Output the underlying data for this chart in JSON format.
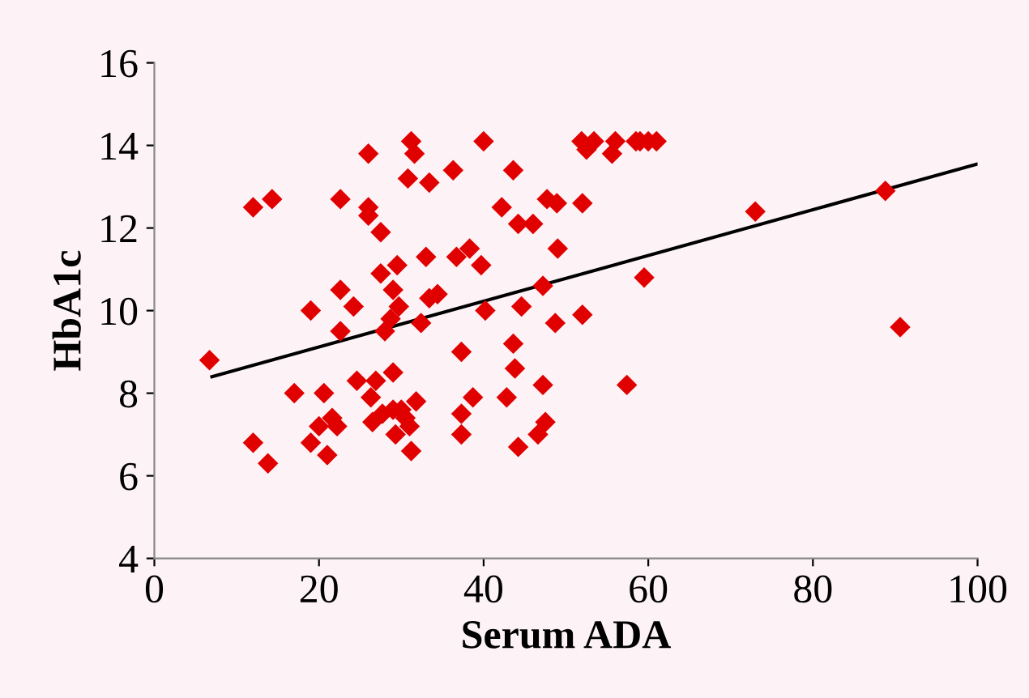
{
  "chart_data": {
    "type": "scatter",
    "xlabel": "Serum ADA",
    "ylabel": "HbA1c",
    "xlim": [
      0,
      100
    ],
    "ylim": [
      4,
      16
    ],
    "xticks": [
      0,
      20,
      40,
      60,
      80,
      100
    ],
    "yticks": [
      4,
      6,
      8,
      10,
      12,
      14,
      16
    ],
    "grid": false,
    "legend": false,
    "marker": "diamond",
    "series": [
      {
        "color": "#e00000",
        "x": [
          6.7,
          12,
          14.3,
          12,
          13.8,
          17,
          19,
          19,
          20,
          20.6,
          21,
          21.6,
          22.6,
          22.6,
          22.6,
          22.2,
          24.2,
          24.6,
          26,
          26,
          26,
          26.3,
          26.5,
          26.9,
          27.5,
          27.5,
          27.7,
          28,
          28.7,
          29,
          29,
          29,
          29.5,
          29.7,
          30,
          29.3,
          30.5,
          31.2,
          31.6,
          30.8,
          31,
          31.2,
          31.8,
          32.4,
          33,
          33.4,
          33.4,
          34.4,
          36.3,
          36.7,
          37.3,
          37.3,
          37.3,
          38.3,
          38.7,
          40,
          39.7,
          40.2,
          42.2,
          42.8,
          43.6,
          43.6,
          43.8,
          44.2,
          44.2,
          44.6,
          46,
          47.2,
          47.2,
          46.6,
          47.5,
          47.7,
          48.9,
          49,
          48.7,
          51.9,
          52,
          52,
          52.5,
          53.4,
          55.6,
          56,
          57.4,
          58.5,
          59,
          60,
          61,
          59.5,
          73,
          88.8,
          90.6
        ],
        "values": [
          8.8,
          12.5,
          12.7,
          6.8,
          6.3,
          8.0,
          10.0,
          6.8,
          7.2,
          8.0,
          6.5,
          7.4,
          12.7,
          10.5,
          9.5,
          7.2,
          10.1,
          8.3,
          13.8,
          12.5,
          12.3,
          7.9,
          7.3,
          8.3,
          11.9,
          10.9,
          7.5,
          9.5,
          9.8,
          10.5,
          8.5,
          7.6,
          11.1,
          10.1,
          7.6,
          7.0,
          7.4,
          14.1,
          13.8,
          13.2,
          7.2,
          6.6,
          7.8,
          9.7,
          11.3,
          13.1,
          10.3,
          10.4,
          13.4,
          11.3,
          9.0,
          7.5,
          7.0,
          11.5,
          7.9,
          14.1,
          11.1,
          10.0,
          12.5,
          7.9,
          13.4,
          9.2,
          8.6,
          12.1,
          6.7,
          10.1,
          12.1,
          10.6,
          8.2,
          7.0,
          7.3,
          12.7,
          12.6,
          11.5,
          9.7,
          14.1,
          12.6,
          9.9,
          13.9,
          14.1,
          13.8,
          14.1,
          8.2,
          14.1,
          14.1,
          14.1,
          14.1,
          10.8,
          12.4,
          12.9,
          9.6
        ]
      },
      {
        "type": "line",
        "color": "#000000",
        "marker": "none",
        "x": [
          7,
          100
        ],
        "values": [
          8.4,
          13.55
        ]
      }
    ]
  }
}
